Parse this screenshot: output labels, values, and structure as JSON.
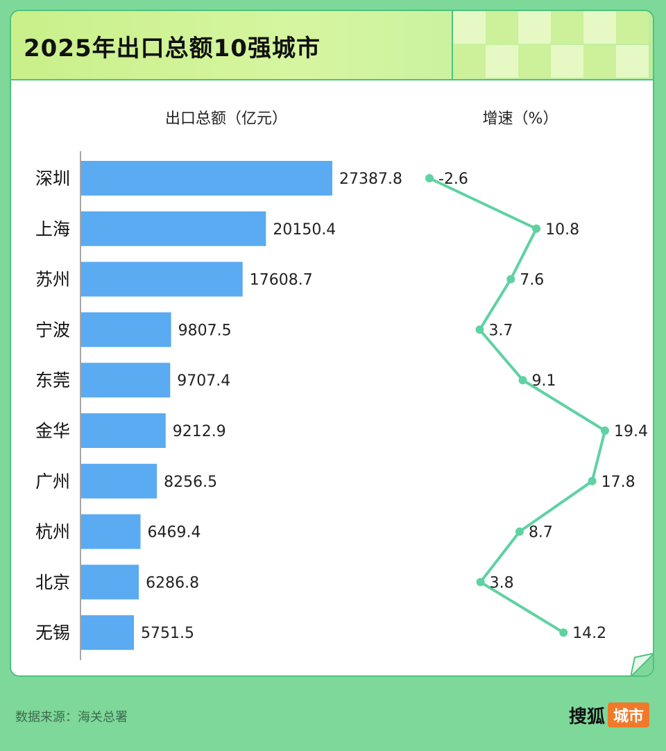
{
  "title": "2025年出口总额10强城市",
  "source": "数据来源：海关总署",
  "brand": {
    "name": "搜狐",
    "tag": "城市"
  },
  "colors": {
    "bar": "#5aabf1",
    "line": "#5ed2a2",
    "background": "#7dd89a"
  },
  "chart_data": [
    {
      "type": "bar",
      "orientation": "horizontal",
      "title": "出口总额（亿元）",
      "categories": [
        "深圳",
        "上海",
        "苏州",
        "宁波",
        "东莞",
        "金华",
        "广州",
        "杭州",
        "北京",
        "无锡"
      ],
      "values": [
        27387.8,
        20150.4,
        17608.7,
        9807.5,
        9707.4,
        9212.9,
        8256.5,
        6469.4,
        6286.8,
        5751.5
      ],
      "labels": [
        "27387.8",
        "20150.4",
        "17608.7",
        "9807.5",
        "9707.4",
        "9212.9",
        "8256.5",
        "6469.4",
        "6286.8",
        "5751.5"
      ]
    },
    {
      "type": "line",
      "orientation": "vertical",
      "title": "增速（%）",
      "categories": [
        "深圳",
        "上海",
        "苏州",
        "宁波",
        "东莞",
        "金华",
        "广州",
        "杭州",
        "北京",
        "无锡"
      ],
      "values": [
        -2.6,
        10.8,
        7.6,
        3.7,
        9.1,
        19.4,
        17.8,
        8.7,
        3.8,
        14.2
      ],
      "labels": [
        "-2.6",
        "10.8",
        "7.6",
        "3.7",
        "9.1",
        "19.4",
        "17.8",
        "8.7",
        "3.8",
        "14.2"
      ]
    }
  ]
}
